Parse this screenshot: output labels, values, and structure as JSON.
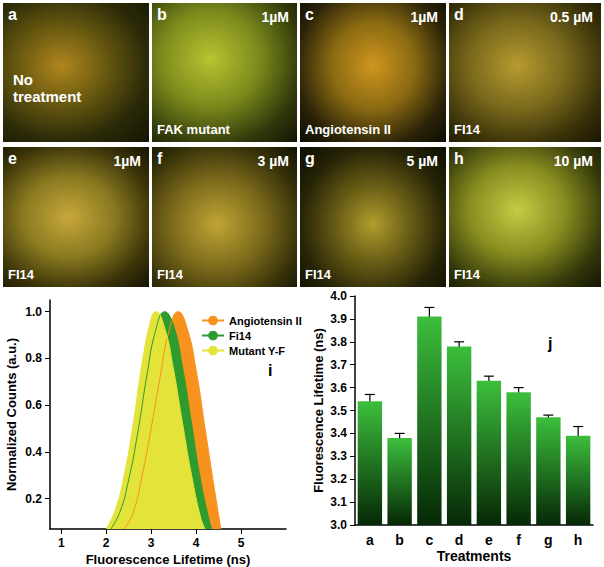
{
  "panels": [
    {
      "letter": "a",
      "treatment": "No treatment"
    },
    {
      "letter": "b",
      "concentration": "1µM",
      "treatment": "FAK mutant"
    },
    {
      "letter": "c",
      "concentration": "1µM",
      "treatment": "Angiotensin II"
    },
    {
      "letter": "d",
      "concentration": "0.5 µM",
      "treatment": "FI14"
    },
    {
      "letter": "e",
      "concentration": "1µM",
      "treatment": "FI14"
    },
    {
      "letter": "f",
      "concentration": "3 µM",
      "treatment": "FI14"
    },
    {
      "letter": "g",
      "concentration": "5 µM",
      "treatment": "FI14"
    },
    {
      "letter": "h",
      "concentration": "10 µM",
      "treatment": "FI14"
    }
  ],
  "chart_data": [
    {
      "type": "area",
      "annotation": "i",
      "x_label": "Fluorescence Lifetime (ns)",
      "y_label": "Normalized Counts (a.u.)",
      "xlim": [
        0.75,
        6.0
      ],
      "xticks": [
        1,
        2,
        3,
        4,
        5
      ],
      "ylim": [
        0.07,
        1.05
      ],
      "yticks": [
        0.2,
        0.4,
        0.6,
        0.8,
        {
          "value": 1.0,
          "label": "1.0"
        }
      ],
      "grid": false,
      "legend": "upper right",
      "series": [
        {
          "name": "Angiotensin II",
          "color": "#f7921e",
          "x": [
            2.4,
            2.6,
            2.8,
            3.0,
            3.2,
            3.4,
            3.6,
            3.8,
            4.0,
            4.2,
            4.4,
            4.55
          ],
          "values": [
            0.07,
            0.14,
            0.3,
            0.5,
            0.72,
            0.92,
            1.0,
            0.93,
            0.75,
            0.5,
            0.25,
            0.07
          ]
        },
        {
          "name": "Fi14",
          "color": "#2e9b2e",
          "x": [
            2.1,
            2.3,
            2.5,
            2.7,
            2.9,
            3.1,
            3.3,
            3.5,
            3.7,
            3.9,
            4.1,
            4.3,
            4.35
          ],
          "values": [
            0.07,
            0.14,
            0.28,
            0.48,
            0.72,
            0.92,
            1.0,
            0.94,
            0.76,
            0.52,
            0.28,
            0.1,
            0.07
          ]
        },
        {
          "name": "Mutant Y-F",
          "color": "#e3e33a",
          "x": [
            2.0,
            2.2,
            2.4,
            2.6,
            2.8,
            3.0,
            3.1,
            3.3,
            3.5,
            3.7,
            3.9,
            4.1,
            4.2
          ],
          "values": [
            0.07,
            0.15,
            0.3,
            0.52,
            0.78,
            0.97,
            1.0,
            0.93,
            0.75,
            0.52,
            0.3,
            0.12,
            0.07
          ]
        }
      ]
    },
    {
      "type": "bar",
      "annotation": "j",
      "x_label": "Treatments",
      "y_label": "Fluorescence Lifetime (ns)",
      "categories": [
        "a",
        "b",
        "c",
        "d",
        "e",
        "f",
        "g",
        "h"
      ],
      "values": [
        3.54,
        3.38,
        3.91,
        3.78,
        3.63,
        3.58,
        3.47,
        3.39
      ],
      "errors": [
        0.03,
        0.02,
        0.04,
        0.02,
        0.02,
        0.02,
        0.01,
        0.04
      ],
      "color": "#3cbf3c",
      "ylim": [
        3.0,
        4.0
      ],
      "yticks": [
        {
          "value": 3.0,
          "label": "3.0"
        },
        3.1,
        3.2,
        3.3,
        3.4,
        3.5,
        3.6,
        3.7,
        3.8,
        3.9,
        {
          "value": 4.0,
          "label": "4.0"
        }
      ],
      "grid": false
    }
  ]
}
